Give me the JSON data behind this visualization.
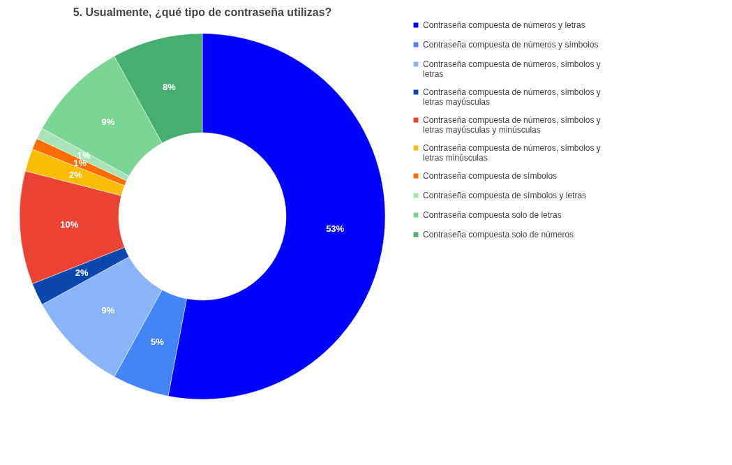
{
  "chart_data": {
    "type": "donut",
    "title": "5. Usualmente, ¿qué tipo de contraseña utilizas?",
    "categories": [
      "Contraseña compuesta de números y letras",
      "Contraseña compuesta de números y símbolos",
      "Contraseña compuesta de números, símbolos y letras",
      "Contraseña compuesta de números, símbolos y letras mayúsculas",
      "Contraseña compuesta de números, símbolos y letras mayúsculas y minúsculas",
      "Contraseña compuesta de números, símbolos y letras minúsculas",
      "Contraseña compuesta de símbolos",
      "Contraseña compuesta de símbolos y letras",
      "Contraseña compuesta solo de letras",
      "Contraseña compuesta solo de números"
    ],
    "values": [
      53,
      5,
      9,
      2,
      10,
      2,
      1,
      1,
      9,
      8
    ],
    "colors": [
      "#0000ff",
      "#4285f4",
      "#8ab4f8",
      "#0b47ad",
      "#ea4335",
      "#fbbc04",
      "#ff6d01",
      "#a8e3b8",
      "#7bd594",
      "#46ae6f"
    ],
    "value_labels": [
      "53%",
      "5%",
      "9%",
      "2%",
      "10%",
      "2%",
      "1%",
      "1%",
      "9%",
      "8%"
    ],
    "legend": "right"
  }
}
